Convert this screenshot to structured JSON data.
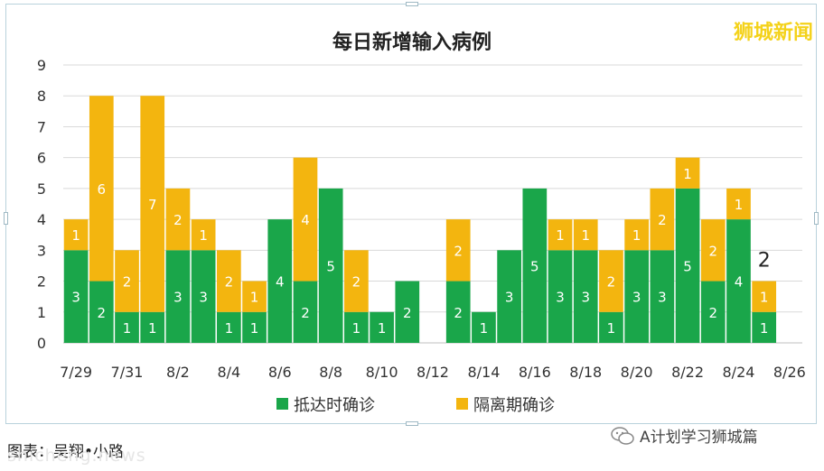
{
  "watermark": "狮城新闻",
  "caption": "图表：吴翔•小路",
  "source_text": "A计划学习狮城篇",
  "site_text": "shicheng.news",
  "colors": {
    "series1": "#1aa64a",
    "series2": "#f3b50f",
    "grid": "#d9d9d9",
    "axis": "#bfbfbf"
  },
  "chart_data": {
    "type": "bar",
    "stacked": true,
    "title": "每日新增输入病例",
    "categories": [
      "7/29",
      "7/30",
      "7/31",
      "8/1",
      "8/2",
      "8/3",
      "8/4",
      "8/5",
      "8/6",
      "8/7",
      "8/8",
      "8/9",
      "8/10",
      "8/11",
      "8/12",
      "8/13",
      "8/14",
      "8/15",
      "8/16",
      "8/17",
      "8/18",
      "8/19",
      "8/20",
      "8/21",
      "8/22",
      "8/23",
      "8/24",
      "8/25",
      "8/26"
    ],
    "tick_labels": [
      "7/29",
      "7/31",
      "8/2",
      "8/4",
      "8/6",
      "8/8",
      "8/10",
      "8/12",
      "8/14",
      "8/16",
      "8/18",
      "8/20",
      "8/22",
      "8/24",
      "8/26"
    ],
    "series": [
      {
        "name": "抵达时确诊",
        "values": [
          3,
          2,
          1,
          1,
          3,
          3,
          1,
          1,
          4,
          2,
          5,
          1,
          1,
          2,
          0,
          2,
          1,
          3,
          5,
          3,
          3,
          1,
          3,
          3,
          5,
          2,
          4,
          1,
          0
        ]
      },
      {
        "name": "隔离期确诊",
        "values": [
          1,
          6,
          2,
          7,
          2,
          1,
          2,
          1,
          0,
          4,
          0,
          2,
          0,
          0,
          0,
          2,
          0,
          0,
          0,
          1,
          1,
          2,
          1,
          2,
          1,
          2,
          1,
          1,
          0
        ]
      }
    ],
    "ylim": [
      0,
      9
    ],
    "yticks": [
      0,
      1,
      2,
      3,
      4,
      5,
      6,
      7,
      8,
      9
    ],
    "annotations": [
      {
        "category": "8/25",
        "text": "2"
      }
    ],
    "legend_position": "bottom",
    "grid": true
  }
}
